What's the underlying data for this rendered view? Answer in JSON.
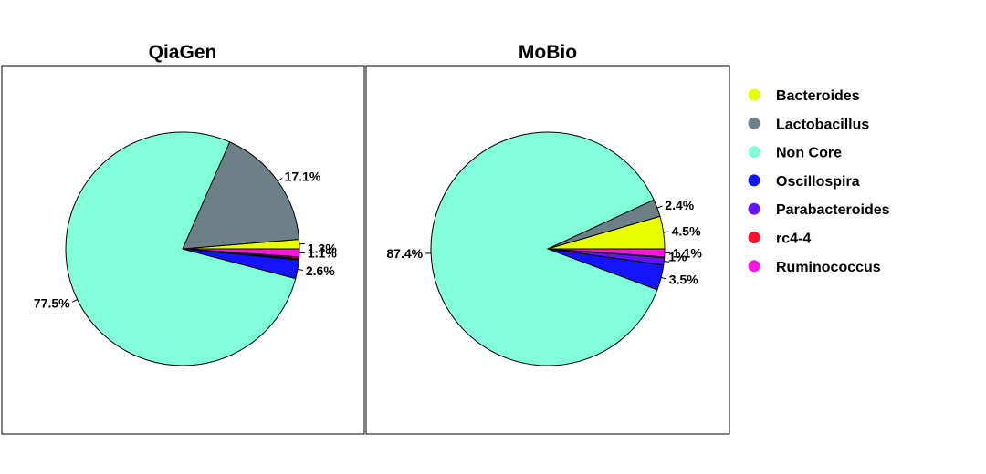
{
  "colors": {
    "Bacteroides": "#e8ff00",
    "Lactobacillus": "#6e8087",
    "Non Core": "#80ffd9",
    "Oscillospira": "#1414ff",
    "Parabacteroides": "#6414ff",
    "rc4-4": "#ff1430",
    "Ruminococcus": "#ff14e6"
  },
  "legend": {
    "items": [
      "Bacteroides",
      "Lactobacillus",
      "Non Core",
      "Oscillospira",
      "Parabacteroides",
      "rc4-4",
      "Ruminococcus"
    ]
  },
  "chart_data": [
    {
      "type": "pie",
      "title": "QiaGen",
      "slices": [
        {
          "category": "Bacteroides",
          "value": 1.3,
          "label": "1.3%"
        },
        {
          "category": "Lactobacillus",
          "value": 17.1,
          "label": "17.1%"
        },
        {
          "category": "Non Core",
          "value": 77.5,
          "label": "77.5%"
        },
        {
          "category": "Oscillospira",
          "value": 2.6,
          "label": "2.6%"
        },
        {
          "category": "Parabacteroides",
          "value": 0.2,
          "label": ""
        },
        {
          "category": "rc4-4",
          "value": 0.2,
          "label": ""
        },
        {
          "category": "Ruminococcus",
          "value": 1.1,
          "label": "1.1%"
        }
      ]
    },
    {
      "type": "pie",
      "title": "MoBio",
      "slices": [
        {
          "category": "Bacteroides",
          "value": 4.5,
          "label": "4.5%"
        },
        {
          "category": "Lactobacillus",
          "value": 2.4,
          "label": "2.4%"
        },
        {
          "category": "Non Core",
          "value": 87.4,
          "label": "87.4%"
        },
        {
          "category": "Oscillospira",
          "value": 3.5,
          "label": "3.5%"
        },
        {
          "category": "Parabacteroides",
          "value": 1.0,
          "label": "1%"
        },
        {
          "category": "rc4-4",
          "value": 0.1,
          "label": ""
        },
        {
          "category": "Ruminococcus",
          "value": 1.1,
          "label": "1.1%"
        }
      ]
    }
  ]
}
